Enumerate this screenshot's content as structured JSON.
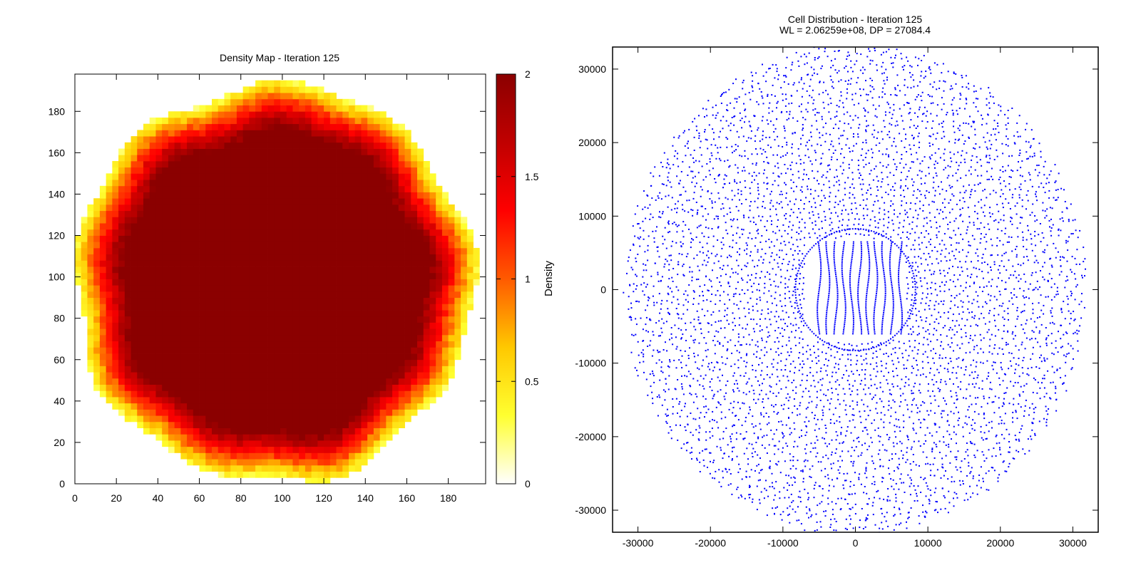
{
  "chart_data": [
    {
      "type": "heatmap",
      "title": "Density Map - Iteration 125",
      "xlabel": "",
      "ylabel": "",
      "xlim": [
        0,
        198
      ],
      "ylim": [
        0,
        198
      ],
      "x_ticks": [
        0,
        20,
        40,
        60,
        80,
        100,
        120,
        140,
        160,
        180
      ],
      "y_ticks": [
        0,
        20,
        40,
        60,
        80,
        100,
        120,
        140,
        160,
        180
      ],
      "colorbar": {
        "label": "Density",
        "range": [
          0,
          2
        ],
        "ticks": [
          "0",
          "0.5",
          "1",
          "1.5",
          "2"
        ],
        "palette": [
          "#ffffff",
          "#ffff30",
          "#ffc800",
          "#ff5a00",
          "#ff0000",
          "#c00000",
          "#8b0000"
        ]
      },
      "density_field": {
        "shape": "disc",
        "center": [
          96,
          97
        ],
        "core_radius": 73,
        "outer_radius": 96,
        "core_density": 2.0,
        "rim_density": 0.3,
        "outside_density": 0
      },
      "grid": false
    },
    {
      "type": "scatter",
      "title": "Cell Distribution - Iteration 125",
      "subtitle": "WL = 2.06259e+08, DP = 27084.4",
      "xlabel": "",
      "ylabel": "",
      "xlim": [
        -33500,
        33500
      ],
      "ylim": [
        -33000,
        33000
      ],
      "x_ticks": [
        -30000,
        -20000,
        -10000,
        0,
        10000,
        20000,
        30000
      ],
      "y_ticks": [
        -30000,
        -20000,
        -10000,
        0,
        10000,
        20000,
        30000
      ],
      "point_color": "#0000ff",
      "cell_cloud": {
        "center": [
          0,
          0
        ],
        "outer_radius_x": 31500,
        "outer_radius_y": 33000,
        "inner_ring_radius_x": 11500,
        "inner_ring_radius_y": 11500,
        "core_columns_x": [
          -5000,
          -3800,
          -2700,
          -1600,
          -500,
          600,
          1700,
          2800,
          3900,
          5000,
          6200
        ],
        "core_column_y_range": [
          -6000,
          6500
        ],
        "approx_point_count": 9000
      },
      "grid": false
    }
  ]
}
